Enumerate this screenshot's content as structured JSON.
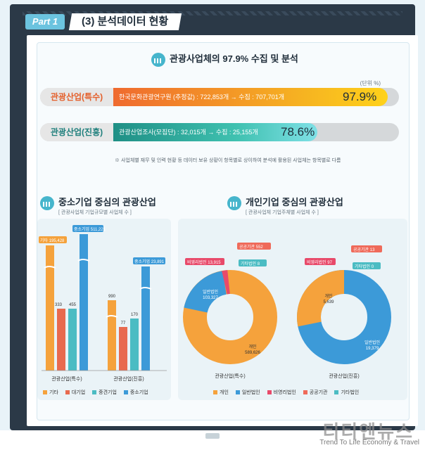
{
  "header": {
    "part": "Part 1",
    "title": "(3) 분석데이터 현황"
  },
  "summary_title": "관광사업체의 97.9% 수집 및 분석",
  "unit": "(단위 %)",
  "bars": [
    {
      "label": "관광산업(특수)",
      "text": "한국문화관광연구원 (추정값) : 722,853개 → 수집 : 707,701개",
      "pct_label": "97.9%",
      "value": 97.9,
      "color": "#f08a3c",
      "label_color": "#e45f2a"
    },
    {
      "label": "관광산업(진흥)",
      "text": "관광산업조사(모집단) : 32,015개 → 수집 : 25,155개",
      "pct_label": "78.6%",
      "value": 78.6,
      "color": "#2aa99b",
      "label_color": "#1f7f7c"
    }
  ],
  "note": "※ 사업체별 재무 및 인력 현황 등 데이터 보유 상황이 항목별로 상이하여 분석에 활용된 사업체는 항목별로 다름",
  "sme": {
    "title": "중소기업 중심의 관광산업",
    "subtitle": "[ 관광사업체 기업규모별 사업체 수 ]",
    "legend": [
      "기타",
      "대기업",
      "중견기업",
      "중소기업"
    ],
    "groups": [
      {
        "name": "관광산업(특수)",
        "labels": [
          "기타 195,428",
          "333",
          "455",
          "중소기업 511,221"
        ]
      },
      {
        "name": "관광산업(진흥)",
        "labels": [
          "990",
          "77",
          "170",
          "중소기업 23,891"
        ]
      }
    ]
  },
  "individual": {
    "title": "개인기업 중심의 관광산업",
    "subtitle": "[ 관광사업체 기업주체별 사업체 수 ]",
    "legend": [
      "개인",
      "일반법인",
      "비영리법인",
      "공공기관",
      "기타법인"
    ],
    "donuts": [
      {
        "name": "관광산업(특수)",
        "labels": {
          "a": "개인",
          "a2": "589,626",
          "b": "일반법인",
          "b2": "103,327",
          "c": "비영리법인 13,915",
          "d": "공공기관 552",
          "e": "기타법인 8"
        }
      },
      {
        "name": "관광산업(진흥)",
        "labels": {
          "a": "개인",
          "a2": "5,639",
          "b": "일반법인",
          "b2": "19,379",
          "c": "비영리법인 97",
          "d": "공공기관 13",
          "e": "기타법인 0"
        }
      }
    ]
  },
  "colors": {
    "orange": "#f5a23c",
    "red": "#e86a4f",
    "teal": "#4bbcc3",
    "blue": "#3c9ad8",
    "pink": "#e84a6a",
    "coral": "#ef6a5a"
  },
  "watermark": {
    "main": "티티엔뉴스",
    "sub": "Trend To Life Economy & Travel"
  }
}
